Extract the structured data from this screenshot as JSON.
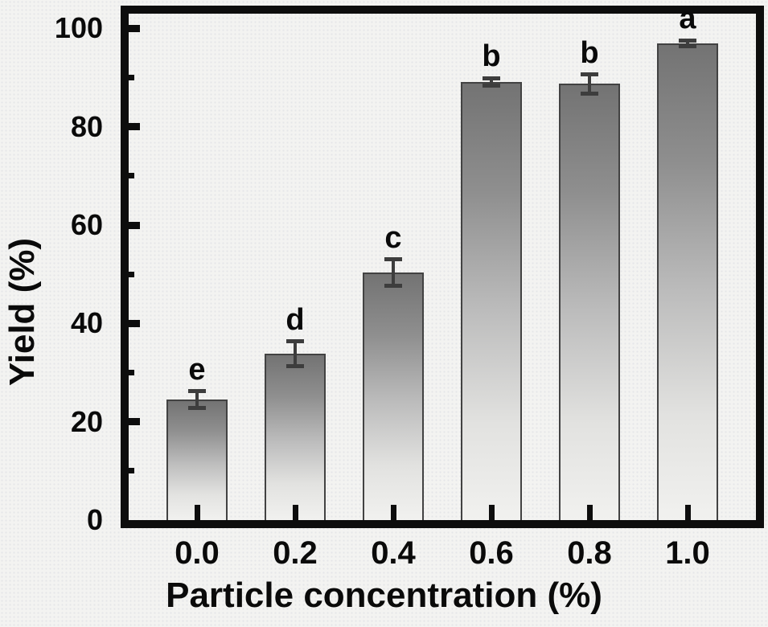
{
  "figure": {
    "background": "#f3f3f1",
    "frame_color": "#0d0d0d",
    "bar_gradient_top": "#737373",
    "bar_gradient_bottom": "#f1f1ef",
    "bar_border_color": "#424242",
    "error_bar_color": "#3d3d3d",
    "text_color": "#0a0a0a"
  },
  "chart_data": {
    "type": "bar",
    "title": "",
    "xlabel": "Particle concentration (%)",
    "ylabel": "Yield (%)",
    "categories": [
      "0.0",
      "0.2",
      "0.4",
      "0.6",
      "0.8",
      "1.0"
    ],
    "values": [
      24.5,
      33.8,
      50.3,
      89.1,
      88.7,
      97.0
    ],
    "errors": [
      1.7,
      2.5,
      2.7,
      0.8,
      1.9,
      0.6
    ],
    "sig_letters": [
      "e",
      "d",
      "c",
      "b",
      "b",
      "a"
    ],
    "y_ticks": [
      0,
      20,
      40,
      60,
      80,
      100
    ],
    "y_minor_ticks": [
      10,
      30,
      50,
      70,
      90
    ],
    "ylim": [
      0,
      103
    ],
    "xlim_labels_only": true,
    "grid": false,
    "legend": "none"
  }
}
